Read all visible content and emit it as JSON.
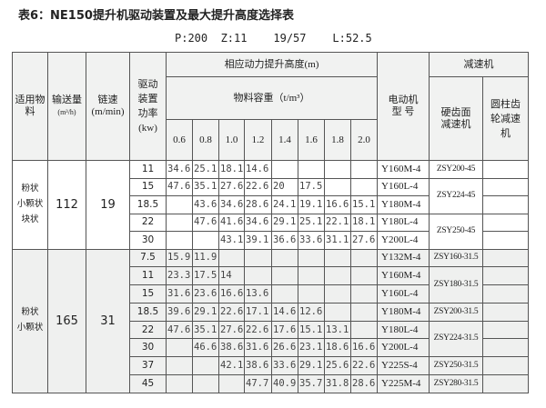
{
  "title": "表6：NE150提升机驱动装置及最大提升高度选择表",
  "params": "P:200  Z:11    19/57    L:52.5",
  "headers": {
    "material": "适用物料",
    "capacity": "输送量",
    "capacity_unit": "(m³/h)",
    "chain_speed": "链速",
    "chain_speed_unit": "(m/min)",
    "drive_power": "驱动装置功率",
    "drive_power_unit": "(kw)",
    "lift_height": "相应动力提升高度(m)",
    "density": "物料容重（t/m³）",
    "densities": [
      "0.6",
      "0.8",
      "1.0",
      "1.2",
      "1.4",
      "1.6",
      "1.8",
      "2.0"
    ],
    "motor": "电动机型  号",
    "reducer": "减速机",
    "hard_gear": "硬齿面减速机",
    "cyl_gear": "圆柱齿轮减速机"
  },
  "groups": [
    {
      "material": "粉状\n小颗状\n块状",
      "capacity": "112",
      "chain_speed": "19",
      "rows": [
        {
          "power": "11",
          "heights": [
            "34.6",
            "25.1",
            "18.1",
            "14.6",
            "",
            "",
            "",
            ""
          ],
          "motor": "Y160M-4"
        },
        {
          "power": "15",
          "heights": [
            "47.6",
            "35.1",
            "27.6",
            "22.6",
            "20",
            "17.5",
            "",
            ""
          ],
          "motor": "Y160L-4"
        },
        {
          "power": "18.5",
          "heights": [
            "",
            "43.6",
            "34.6",
            "28.6",
            "24.1",
            "19.1",
            "16.6",
            "15.1"
          ],
          "motor": "Y180M-4"
        },
        {
          "power": "22",
          "heights": [
            "",
            "47.6",
            "41.6",
            "34.6",
            "29.1",
            "25.1",
            "22.1",
            "18.1"
          ],
          "motor": "Y180L-4"
        },
        {
          "power": "30",
          "heights": [
            "",
            "",
            "43.1",
            "39.1",
            "36.6",
            "33.6",
            "31.1",
            "27.6"
          ],
          "motor": "Y200L-4"
        }
      ],
      "reducers": [
        {
          "label": "ZSY200-45",
          "span": 1
        },
        {
          "label": "ZSY224-45",
          "span": 2
        },
        {
          "label": "ZSY250-45",
          "span": 2
        }
      ]
    },
    {
      "material": "粉状\n小颗状",
      "capacity": "165",
      "chain_speed": "31",
      "rows": [
        {
          "power": "7.5",
          "heights": [
            "15.9",
            "11.9",
            "",
            "",
            "",
            "",
            "",
            ""
          ],
          "motor": "Y132M-4"
        },
        {
          "power": "11",
          "heights": [
            "23.3",
            "17.5",
            "14",
            "",
            "",
            "",
            "",
            ""
          ],
          "motor": "Y160M-4"
        },
        {
          "power": "15",
          "heights": [
            "31.6",
            "23.6",
            "16.6",
            "13.6",
            "",
            "",
            "",
            ""
          ],
          "motor": "Y160L-4"
        },
        {
          "power": "18.5",
          "heights": [
            "39.6",
            "29.1",
            "22.6",
            "17.1",
            "14.6",
            "12.6",
            "",
            ""
          ],
          "motor": "Y180M-4"
        },
        {
          "power": "22",
          "heights": [
            "47.6",
            "35.1",
            "27.6",
            "22.6",
            "17.6",
            "15.1",
            "13.1",
            ""
          ],
          "motor": "Y180L-4"
        },
        {
          "power": "30",
          "heights": [
            "",
            "46.6",
            "38.6",
            "31.6",
            "26.6",
            "23.1",
            "18.6",
            "16.6"
          ],
          "motor": "Y200L-4"
        },
        {
          "power": "37",
          "heights": [
            "",
            "",
            "42.1",
            "38.6",
            "33.6",
            "29.1",
            "25.6",
            "22.6"
          ],
          "motor": "Y225S-4"
        },
        {
          "power": "45",
          "heights": [
            "",
            "",
            "",
            "47.7",
            "40.9",
            "35.7",
            "31.8",
            "28.6"
          ],
          "motor": "Y225M-4"
        }
      ],
      "reducers": [
        {
          "label": "ZSY160-31.5",
          "span": 1
        },
        {
          "label": "ZSY180-31.5",
          "span": 2
        },
        {
          "label": "ZSY200-31.5",
          "span": 1
        },
        {
          "label": "ZSY224-31.5",
          "span": 2
        },
        {
          "label": "ZSY250-31.5",
          "span": 1
        },
        {
          "label": "ZSY280-31.5",
          "span": 1
        }
      ]
    }
  ]
}
